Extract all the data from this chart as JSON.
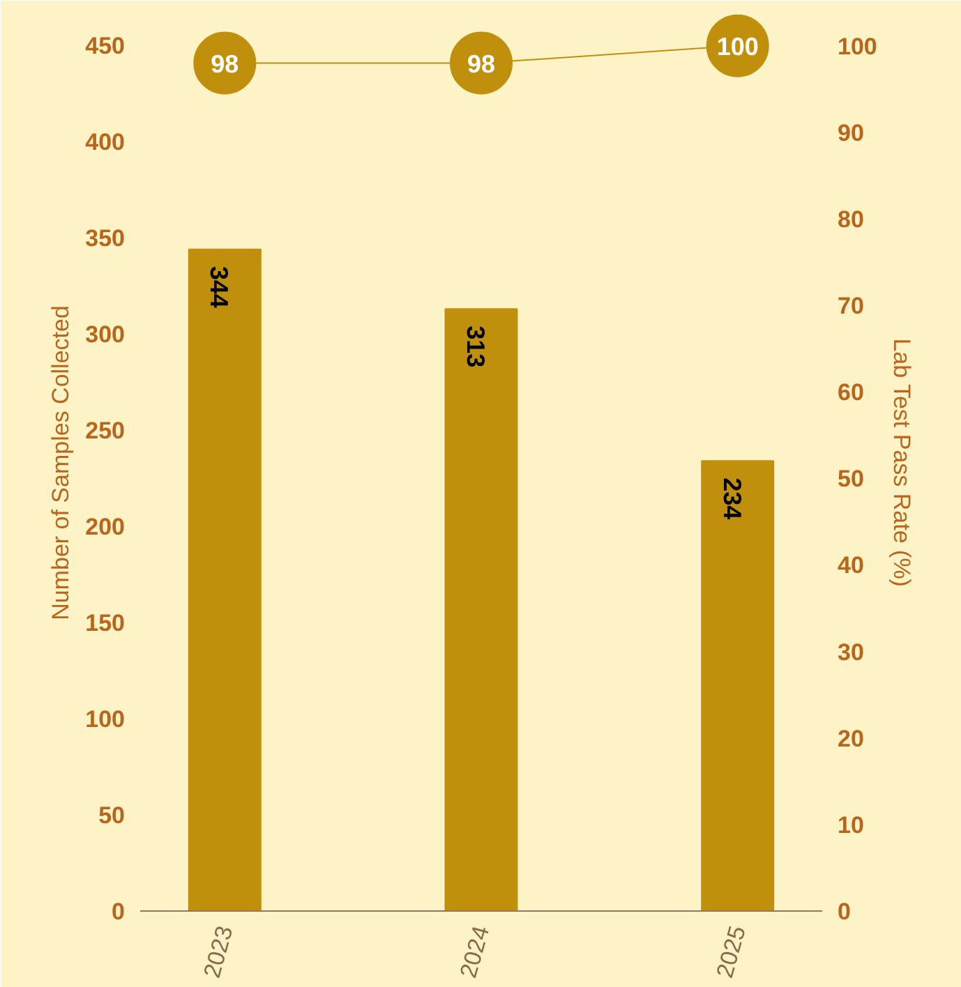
{
  "chart_data": {
    "type": "bar",
    "categories": [
      "2023",
      "2024",
      "2025"
    ],
    "ylabel": "Number of Samples Collected",
    "y2label": "Lab Test Pass Rate (%)",
    "ylim": [
      0,
      466
    ],
    "yticks": [
      0,
      50,
      100,
      150,
      200,
      250,
      300,
      350,
      400,
      450
    ],
    "y2lim": [
      0,
      103.6
    ],
    "y2ticks": [
      0,
      10,
      20,
      30,
      40,
      50,
      60,
      70,
      80,
      90,
      100
    ],
    "series": [
      {
        "color": "#c0900c",
        "values": [
          344,
          313,
          234
        ]
      },
      {
        "type": "line",
        "axis": "y2",
        "color": "#c0900c",
        "values": [
          98,
          98,
          100
        ]
      }
    ],
    "marker": "circle",
    "data_labels": true,
    "grid": false
  }
}
